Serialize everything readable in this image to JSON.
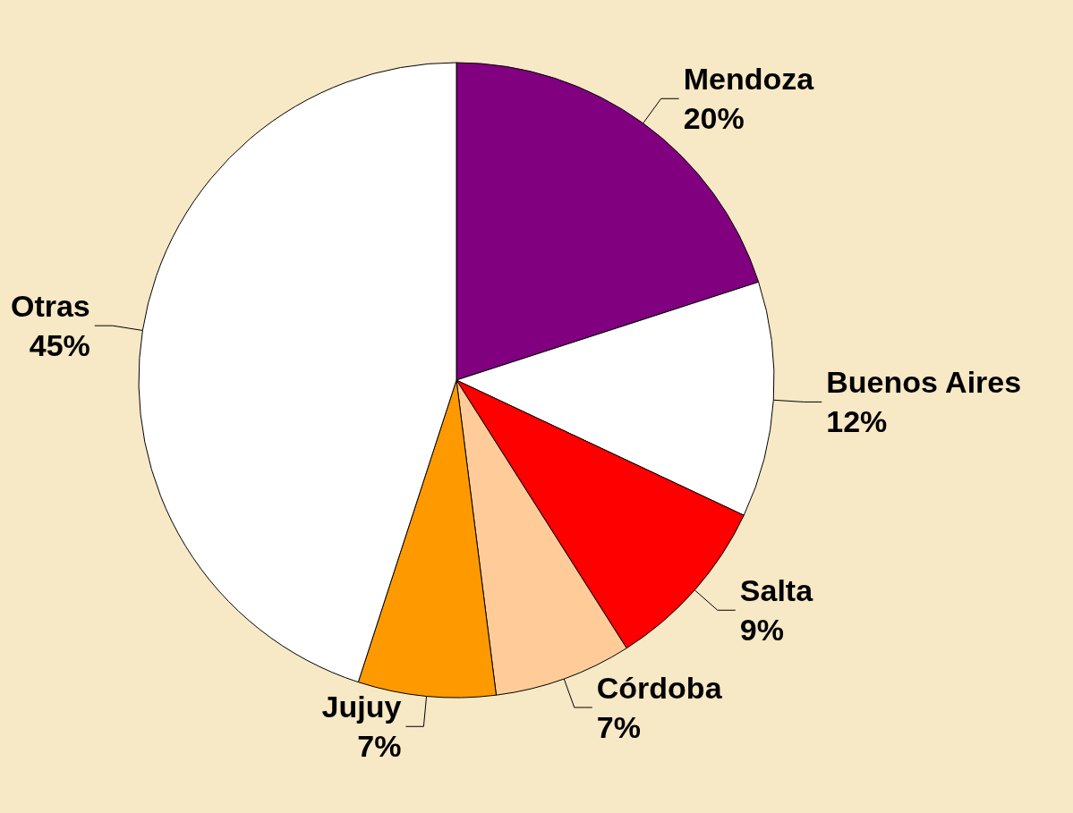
{
  "chart_data": {
    "type": "pie",
    "categories": [
      "Mendoza",
      "Buenos Aires",
      "Salta",
      "Córdoba",
      "Jujuy",
      "Otras"
    ],
    "values": [
      20,
      12,
      9,
      7,
      7,
      45
    ],
    "value_labels": [
      "20%",
      "12%",
      "9%",
      "7%",
      "7%",
      "45%"
    ],
    "colors": [
      "#800080",
      "#ffffff",
      "#ff0000",
      "#ffcc99",
      "#ff9900",
      "#ffffff"
    ],
    "legend": false
  }
}
